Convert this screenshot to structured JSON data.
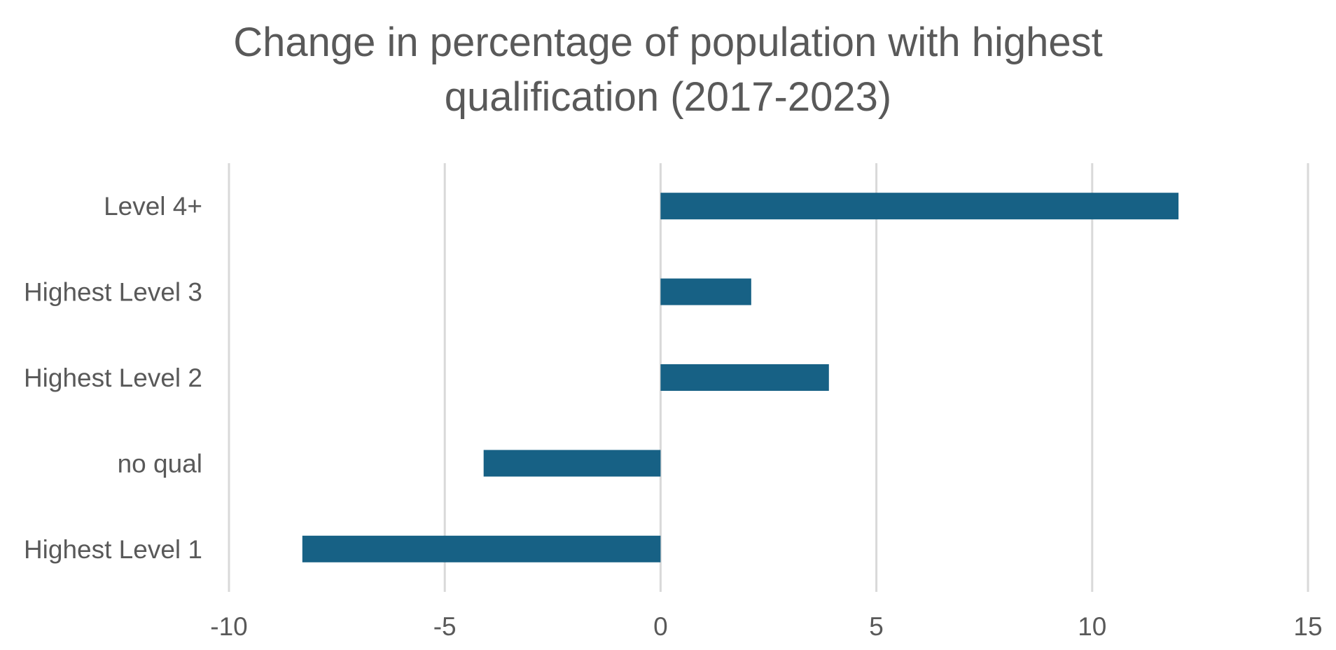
{
  "chart_data": {
    "type": "bar",
    "orientation": "horizontal",
    "title_lines": [
      "Change in percentage of population with highest",
      "qualification (2017-2023)"
    ],
    "categories": [
      "Level 4+",
      "Highest Level 3",
      "Highest Level 2",
      "no qual",
      "Highest Level 1"
    ],
    "values": [
      12.0,
      2.1,
      3.9,
      -4.1,
      -8.3
    ],
    "xlim": [
      -10,
      15
    ],
    "xticks": [
      "-10",
      "-5",
      "0",
      "5",
      "10",
      "15"
    ],
    "xlabel": "",
    "ylabel": "",
    "grid": true,
    "bar_color": "#176185",
    "grid_color": "#d9d9d9",
    "text_color": "#595959"
  }
}
